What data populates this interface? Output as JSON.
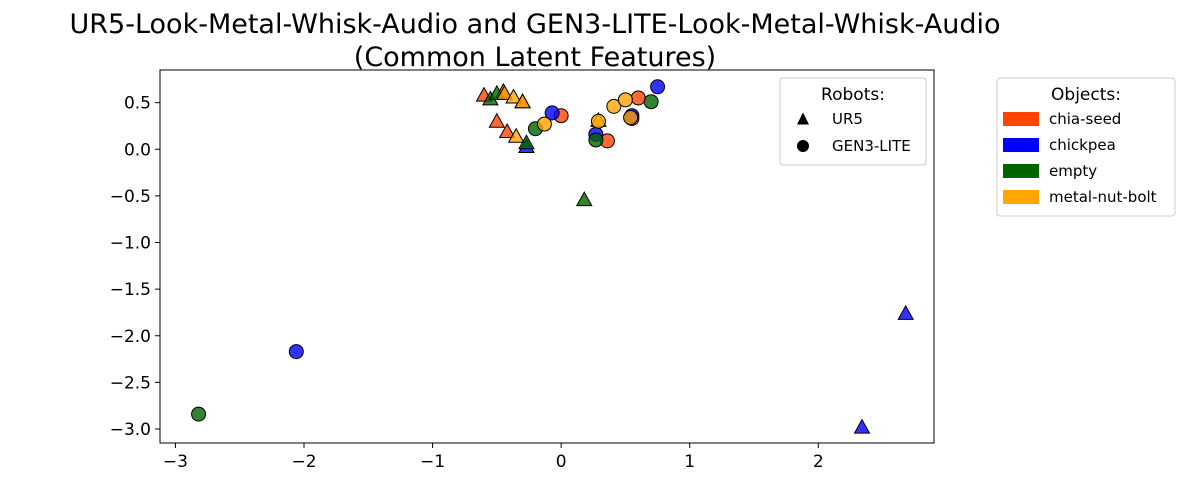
{
  "chart_data": {
    "type": "scatter",
    "title": "UR5-Look-Metal-Whisk-Audio and GEN3-LITE-Look-Metal-Whisk-Audio",
    "subtitle": "(Common Latent Features)",
    "xlabel": "",
    "ylabel": "",
    "xlim": [
      -3.12,
      2.9
    ],
    "ylim": [
      -3.15,
      0.85
    ],
    "xticks": [
      -3,
      -2,
      -1,
      0,
      1,
      2
    ],
    "xtick_labels": [
      "−3",
      "−2",
      "−1",
      "0",
      "1",
      "2"
    ],
    "yticks": [
      0.5,
      0.0,
      -0.5,
      -1.0,
      -1.5,
      -2.0,
      -2.5,
      -3.0
    ],
    "ytick_labels": [
      "0.5",
      "0.0",
      "−0.5",
      "−1.0",
      "−1.5",
      "−2.0",
      "−2.5",
      "−3.0"
    ],
    "grid": false,
    "colors": {
      "chia-seed": "#ff4500",
      "chickpea": "#0000ff",
      "empty": "#006400",
      "metal-nut-bolt": "#ffa500"
    },
    "legend_robots": {
      "title": "Robots:",
      "placement": "upper-right inside axes",
      "items": [
        {
          "label": "UR5",
          "marker": "triangle"
        },
        {
          "label": "GEN3-LITE",
          "marker": "circle"
        }
      ]
    },
    "legend_objects": {
      "title": "Objects:",
      "placement": "outside right",
      "items": [
        "chia-seed",
        "chickpea",
        "empty",
        "metal-nut-bolt"
      ]
    },
    "series": [
      {
        "name": "UR5",
        "marker": "triangle",
        "points": [
          {
            "x": -0.6,
            "y": 0.58,
            "object": "chia-seed"
          },
          {
            "x": -0.5,
            "y": 0.3,
            "object": "chia-seed"
          },
          {
            "x": -0.42,
            "y": 0.19,
            "object": "chia-seed"
          },
          {
            "x": -0.45,
            "y": 0.62,
            "object": "chia-seed"
          },
          {
            "x": -0.3,
            "y": 0.51,
            "object": "chia-seed"
          },
          {
            "x": -0.27,
            "y": 0.03,
            "object": "chickpea"
          },
          {
            "x": 2.68,
            "y": -1.76,
            "object": "chickpea"
          },
          {
            "x": 2.34,
            "y": -2.98,
            "object": "chickpea"
          },
          {
            "x": -0.55,
            "y": 0.54,
            "object": "empty"
          },
          {
            "x": -0.5,
            "y": 0.6,
            "object": "empty"
          },
          {
            "x": -0.27,
            "y": 0.07,
            "object": "empty"
          },
          {
            "x": 0.18,
            "y": -0.54,
            "object": "empty"
          },
          {
            "x": -0.44,
            "y": 0.6,
            "object": "metal-nut-bolt"
          },
          {
            "x": -0.37,
            "y": 0.56,
            "object": "metal-nut-bolt"
          },
          {
            "x": -0.3,
            "y": 0.51,
            "object": "metal-nut-bolt"
          },
          {
            "x": -0.35,
            "y": 0.14,
            "object": "metal-nut-bolt"
          },
          {
            "x": 0.29,
            "y": 0.31,
            "object": "metal-nut-bolt"
          }
        ]
      },
      {
        "name": "GEN3-LITE",
        "marker": "circle",
        "points": [
          {
            "x": 0.0,
            "y": 0.36,
            "object": "chia-seed"
          },
          {
            "x": 0.36,
            "y": 0.09,
            "object": "chia-seed"
          },
          {
            "x": 0.6,
            "y": 0.55,
            "object": "chia-seed"
          },
          {
            "x": 0.55,
            "y": 0.33,
            "object": "chia-seed"
          },
          {
            "x": -0.07,
            "y": 0.39,
            "object": "chickpea"
          },
          {
            "x": 0.27,
            "y": 0.16,
            "object": "chickpea"
          },
          {
            "x": 0.75,
            "y": 0.67,
            "object": "chickpea"
          },
          {
            "x": 0.55,
            "y": 0.36,
            "object": "chickpea"
          },
          {
            "x": -2.06,
            "y": -2.17,
            "object": "chickpea"
          },
          {
            "x": -0.2,
            "y": 0.22,
            "object": "empty"
          },
          {
            "x": 0.27,
            "y": 0.1,
            "object": "empty"
          },
          {
            "x": 0.7,
            "y": 0.51,
            "object": "empty"
          },
          {
            "x": -2.82,
            "y": -2.84,
            "object": "empty"
          },
          {
            "x": -0.13,
            "y": 0.27,
            "object": "metal-nut-bolt"
          },
          {
            "x": 0.29,
            "y": 0.3,
            "object": "metal-nut-bolt"
          },
          {
            "x": 0.41,
            "y": 0.46,
            "object": "metal-nut-bolt"
          },
          {
            "x": 0.5,
            "y": 0.53,
            "object": "metal-nut-bolt"
          },
          {
            "x": 0.54,
            "y": 0.34,
            "object": "metal-nut-bolt"
          }
        ]
      }
    ]
  }
}
